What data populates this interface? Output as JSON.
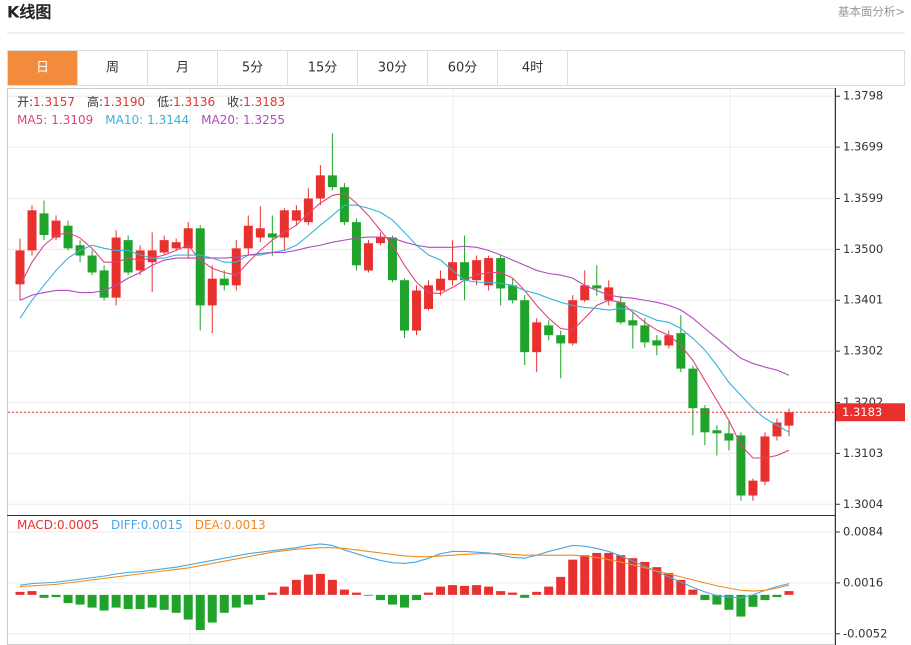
{
  "header": {
    "title": "K线图",
    "link": "基本面分析>"
  },
  "tabs": [
    "日",
    "周",
    "月",
    "5分",
    "15分",
    "30分",
    "60分",
    "4时"
  ],
  "active_tab": 0,
  "chart_data": [
    {
      "type": "candlestick",
      "readouts": [
        {
          "name": "开:",
          "value": 1.3157
        },
        {
          "name": "高:",
          "value": 1.319,
          "label": "1.3190"
        },
        {
          "name": "低:",
          "value": 1.3136
        },
        {
          "name": "收:",
          "value": 1.3183
        }
      ],
      "ma_readouts": [
        {
          "name": "MA5:",
          "value": 1.3109
        },
        {
          "name": "MA10:",
          "value": 1.3144
        },
        {
          "name": "MA20:",
          "value": 1.3255
        }
      ],
      "up_color": "#e8312f",
      "down_color": "#1fa32a",
      "open": [
        1.3432,
        1.3498,
        1.357,
        1.3523,
        1.3546,
        1.3508,
        1.3488,
        1.3459,
        1.3406,
        1.3518,
        1.3459,
        1.3475,
        1.3494,
        1.3502,
        1.3502,
        1.3541,
        1.3391,
        1.3443,
        1.343,
        1.3502,
        1.3523,
        1.3531,
        1.3523,
        1.3556,
        1.3553,
        1.3599,
        1.3644,
        1.3621,
        1.3553,
        1.3459,
        1.3512,
        1.3523,
        1.344,
        1.3342,
        1.3384,
        1.342,
        1.344,
        1.3475,
        1.344,
        1.343,
        1.3483,
        1.343,
        1.3401,
        1.33,
        1.3352,
        1.3333,
        1.3317,
        1.3401,
        1.343,
        1.3401,
        1.3397,
        1.3362,
        1.3352,
        1.3323,
        1.3313,
        1.3337,
        1.3268,
        1.3191,
        1.3148,
        1.3142,
        1.3138,
        1.3021,
        1.3048,
        1.3136,
        1.3157
      ],
      "high": [
        1.3521,
        1.3586,
        1.3595,
        1.3566,
        1.3556,
        1.3518,
        1.3498,
        1.3469,
        1.3537,
        1.3527,
        1.3508,
        1.3533,
        1.3527,
        1.3521,
        1.3553,
        1.3547,
        1.3469,
        1.3459,
        1.3518,
        1.3566,
        1.3584,
        1.3566,
        1.358,
        1.3586,
        1.3619,
        1.3664,
        1.3726,
        1.3629,
        1.356,
        1.3518,
        1.3533,
        1.3527,
        1.3443,
        1.343,
        1.344,
        1.3459,
        1.3518,
        1.3527,
        1.3488,
        1.3488,
        1.3488,
        1.3443,
        1.3411,
        1.3366,
        1.3362,
        1.3342,
        1.3411,
        1.3459,
        1.3469,
        1.344,
        1.3409,
        1.3377,
        1.3366,
        1.3333,
        1.3342,
        1.3372,
        1.3274,
        1.3197,
        1.3158,
        1.3167,
        1.3144,
        1.3054,
        1.3144,
        1.3171,
        1.319
      ],
      "low": [
        1.3401,
        1.3488,
        1.3518,
        1.3518,
        1.3498,
        1.3475,
        1.345,
        1.3401,
        1.3391,
        1.345,
        1.345,
        1.3417,
        1.3488,
        1.3498,
        1.3482,
        1.3342,
        1.3337,
        1.342,
        1.342,
        1.3488,
        1.3514,
        1.3488,
        1.3498,
        1.3546,
        1.3547,
        1.3586,
        1.3615,
        1.3547,
        1.3459,
        1.3455,
        1.3508,
        1.3436,
        1.3327,
        1.3333,
        1.3381,
        1.341,
        1.343,
        1.3401,
        1.343,
        1.342,
        1.3391,
        1.3395,
        1.3275,
        1.3261,
        1.3323,
        1.3249,
        1.3313,
        1.3397,
        1.341,
        1.3391,
        1.3354,
        1.3307,
        1.3309,
        1.3294,
        1.3307,
        1.3261,
        1.3138,
        1.3119,
        1.3099,
        1.3109,
        1.3011,
        1.3011,
        1.3041,
        1.3128,
        1.3136
      ],
      "close": [
        1.3498,
        1.3576,
        1.3528,
        1.3556,
        1.3502,
        1.3488,
        1.3455,
        1.3406,
        1.3523,
        1.3455,
        1.3498,
        1.3498,
        1.3518,
        1.3514,
        1.3541,
        1.3391,
        1.3443,
        1.343,
        1.3502,
        1.3546,
        1.3541,
        1.3523,
        1.3576,
        1.3576,
        1.3599,
        1.3644,
        1.3621,
        1.3553,
        1.3469,
        1.3512,
        1.3523,
        1.344,
        1.3342,
        1.342,
        1.343,
        1.3443,
        1.3475,
        1.344,
        1.3479,
        1.3483,
        1.3424,
        1.3401,
        1.33,
        1.3358,
        1.3333,
        1.3317,
        1.3401,
        1.343,
        1.3424,
        1.3426,
        1.3358,
        1.3352,
        1.3319,
        1.3313,
        1.3333,
        1.3268,
        1.3191,
        1.3144,
        1.3142,
        1.3128,
        1.3021,
        1.305,
        1.3136,
        1.3163,
        1.3183
      ],
      "series": [
        {
          "color": "#e0457b",
          "values": [
            1.343,
            1.3475,
            1.3508,
            1.3527,
            1.3533,
            1.3522,
            1.3502,
            1.3475,
            1.3475,
            1.3483,
            1.3479,
            1.3483,
            1.3489,
            1.3498,
            1.3508,
            1.3479,
            1.3463,
            1.3455,
            1.345,
            1.3475,
            1.3498,
            1.3518,
            1.3533,
            1.3547,
            1.357,
            1.359,
            1.3605,
            1.3609,
            1.359,
            1.3566,
            1.3537,
            1.3508,
            1.3469,
            1.3436,
            1.3416,
            1.3414,
            1.3426,
            1.344,
            1.345,
            1.3455,
            1.3455,
            1.3444,
            1.342,
            1.3391,
            1.3366,
            1.3346,
            1.3343,
            1.3366,
            1.3391,
            1.3401,
            1.3397,
            1.3378,
            1.3358,
            1.3343,
            1.3333,
            1.3313,
            1.3284,
            1.3245,
            1.3206,
            1.3167,
            1.3119,
            1.3094,
            1.3094,
            1.3099,
            1.3109
          ]
        },
        {
          "color": "#35b5d9",
          "values": [
            1.3366,
            1.3401,
            1.343,
            1.3459,
            1.3483,
            1.3498,
            1.3508,
            1.3502,
            1.3498,
            1.3498,
            1.3489,
            1.3483,
            1.3483,
            1.3489,
            1.3489,
            1.3489,
            1.3483,
            1.3475,
            1.3475,
            1.3489,
            1.3489,
            1.3494,
            1.3498,
            1.3508,
            1.3527,
            1.3547,
            1.3566,
            1.3586,
            1.3586,
            1.358,
            1.3572,
            1.3557,
            1.3533,
            1.3508,
            1.3489,
            1.3479,
            1.3459,
            1.344,
            1.3436,
            1.3436,
            1.3434,
            1.343,
            1.342,
            1.3414,
            1.3405,
            1.3397,
            1.3391,
            1.3387,
            1.3385,
            1.3382,
            1.3385,
            1.3382,
            1.3372,
            1.3362,
            1.3358,
            1.3346,
            1.3327,
            1.3304,
            1.3274,
            1.3241,
            1.3216,
            1.3191,
            1.3171,
            1.3158,
            1.3144
          ]
        },
        {
          "color": "#b04cbf",
          "values": [
            1.3401,
            1.3411,
            1.3416,
            1.342,
            1.342,
            1.3416,
            1.3416,
            1.342,
            1.343,
            1.3444,
            1.3455,
            1.3469,
            1.3479,
            1.3483,
            1.3483,
            1.3483,
            1.3483,
            1.3483,
            1.3485,
            1.3489,
            1.3492,
            1.3494,
            1.3494,
            1.3498,
            1.3504,
            1.3508,
            1.3514,
            1.3518,
            1.3522,
            1.3524,
            1.3524,
            1.3522,
            1.3514,
            1.3508,
            1.3504,
            1.3504,
            1.3504,
            1.3506,
            1.3504,
            1.3498,
            1.3489,
            1.3479,
            1.3469,
            1.3459,
            1.3453,
            1.345,
            1.3444,
            1.343,
            1.342,
            1.3411,
            1.3407,
            1.3405,
            1.3401,
            1.3397,
            1.3391,
            1.3382,
            1.3366,
            1.3346,
            1.3327,
            1.3307,
            1.3288,
            1.3278,
            1.3271,
            1.3265,
            1.3255
          ]
        }
      ],
      "last_price": 1.3183,
      "ylim": [
        1.2987,
        1.3814
      ],
      "yticks": [
        1.3798,
        1.3699,
        1.3599,
        {
          "value": 1.35,
          "label": "1.3500"
        },
        1.3401,
        1.3302,
        1.3202,
        1.3103,
        1.3004
      ],
      "grid": true
    },
    {
      "type": "macd",
      "readouts": [
        {
          "name": "MACD:",
          "value": 0.0005
        },
        {
          "name": "DIFF:",
          "value": 0.0015
        },
        {
          "name": "DEA:",
          "value": 0.0013
        }
      ],
      "up_color": "#e8312f",
      "down_color": "#1fa32a",
      "histogram": [
        0.0004,
        0.0005,
        -0.0004,
        -0.0003,
        -0.0011,
        -0.0013,
        -0.0017,
        -0.0021,
        -0.0017,
        -0.0019,
        -0.0019,
        -0.0017,
        -0.002,
        -0.0024,
        -0.0033,
        -0.0047,
        -0.0037,
        -0.0024,
        -0.0017,
        -0.0013,
        -0.0007,
        0.0003,
        0.0011,
        0.002,
        0.0027,
        0.0028,
        0.002,
        0.0007,
        0.0003,
        -0.0001,
        -0.0007,
        -0.0013,
        -0.0017,
        -0.0007,
        0.0003,
        0.0011,
        0.0013,
        0.0012,
        0.0013,
        0.0011,
        0.0005,
        0.0003,
        -0.0004,
        0.0004,
        0.0011,
        0.0024,
        0.0047,
        0.0053,
        0.0056,
        0.0056,
        0.0053,
        0.0049,
        0.0044,
        0.0037,
        0.0029,
        0.002,
        0.0007,
        -0.0007,
        -0.0013,
        -0.002,
        -0.0029,
        -0.0016,
        -0.0007,
        -0.0003,
        0.0005
      ],
      "series": [
        {
          "color": "#4aa8e0",
          "values": [
            0.0013,
            0.0015,
            0.0016,
            0.0017,
            0.0019,
            0.0021,
            0.0023,
            0.0025,
            0.0028,
            0.003,
            0.0031,
            0.0033,
            0.0035,
            0.0037,
            0.004,
            0.0043,
            0.0046,
            0.0049,
            0.0052,
            0.0055,
            0.0057,
            0.0059,
            0.0061,
            0.0063,
            0.0066,
            0.0068,
            0.0066,
            0.006,
            0.0055,
            0.005,
            0.0046,
            0.0043,
            0.0042,
            0.0044,
            0.0049,
            0.0055,
            0.0058,
            0.0058,
            0.0057,
            0.0056,
            0.0053,
            0.005,
            0.0049,
            0.0053,
            0.0058,
            0.0062,
            0.0066,
            0.0065,
            0.0062,
            0.0058,
            0.0052,
            0.0045,
            0.0038,
            0.0031,
            0.0024,
            0.0017,
            0.001,
            0.0004,
            -0.0001,
            -0.0003,
            -0.0004,
            0,
            0.0006,
            0.0011,
            0.0015
          ]
        },
        {
          "color": "#f08a24",
          "values": [
            0.0011,
            0.0012,
            0.0013,
            0.0014,
            0.0016,
            0.0018,
            0.002,
            0.0022,
            0.0024,
            0.0026,
            0.0028,
            0.003,
            0.0032,
            0.0034,
            0.0036,
            0.0039,
            0.0042,
            0.0045,
            0.0048,
            0.0051,
            0.0054,
            0.0057,
            0.0059,
            0.0061,
            0.0062,
            0.0063,
            0.0063,
            0.0062,
            0.006,
            0.0058,
            0.0056,
            0.0054,
            0.0052,
            0.0051,
            0.0051,
            0.0052,
            0.0053,
            0.0054,
            0.0055,
            0.0055,
            0.0055,
            0.0054,
            0.0053,
            0.0053,
            0.0053,
            0.0053,
            0.0053,
            0.0052,
            0.005,
            0.0047,
            0.0044,
            0.004,
            0.0036,
            0.0032,
            0.0028,
            0.0024,
            0.002,
            0.0016,
            0.0012,
            0.0009,
            0.0006,
            0.0005,
            0.0006,
            0.0009,
            0.0013
          ]
        }
      ],
      "ylim": [
        -0.0067,
        0.0104
      ],
      "yticks": [
        0.0084,
        0.0016,
        -0.0052
      ]
    }
  ]
}
